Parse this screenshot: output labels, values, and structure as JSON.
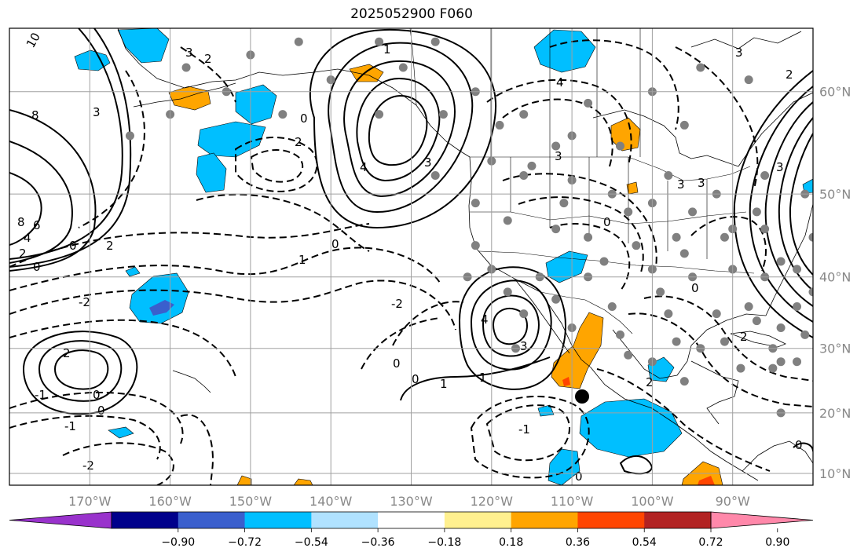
{
  "title": "2025052900 F060",
  "map": {
    "projection": "mercator",
    "lon_range": [
      -180,
      -80
    ],
    "lat_range": [
      8,
      65
    ],
    "grid": true,
    "lon_ticks": [
      "170°W",
      "160°W",
      "150°W",
      "140°W",
      "130°W",
      "120°W",
      "110°W",
      "100°W",
      "90°W"
    ],
    "lon_tick_values": [
      -170,
      -160,
      -150,
      -140,
      -130,
      -120,
      -110,
      -100,
      -90
    ],
    "lat_ticks": [
      "60°N",
      "50°N",
      "40°N",
      "30°N",
      "20°N",
      "10°N"
    ],
    "lat_tick_values": [
      60,
      50,
      40,
      30,
      20,
      10
    ],
    "contour_labels": [
      "0",
      "1",
      "2",
      "3",
      "4",
      "-1",
      "-2",
      "8",
      "6",
      "10"
    ],
    "marker_color": "#000000",
    "station_color": "#808080"
  },
  "colorbar": {
    "colors": [
      "#9932cc",
      "#00008b",
      "#3a5fcd",
      "#00bfff",
      "#b0e2ff",
      "#ffffff",
      "#fff08f",
      "#ffa500",
      "#ff4500",
      "#b22222",
      "#ff88aa"
    ],
    "tick_labels": [
      "−0.90",
      "−0.72",
      "−0.54",
      "−0.36",
      "−0.18",
      "0.18",
      "0.36",
      "0.54",
      "0.72",
      "0.90"
    ]
  }
}
